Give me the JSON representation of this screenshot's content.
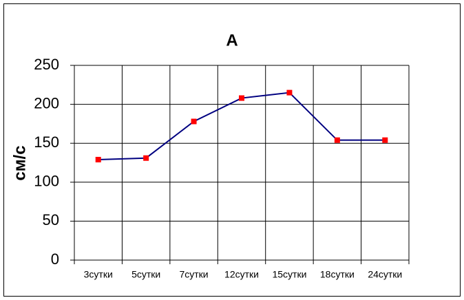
{
  "chart_data": {
    "type": "line",
    "title": "A",
    "y_label": "см/с",
    "categories": [
      "3сутки",
      "5сутки",
      "7сутки",
      "12сутки",
      "15сутки",
      "18сутки",
      "24сутки"
    ],
    "series": [
      {
        "color": "#000080",
        "marker_color": "#ff0000",
        "values": [
          129,
          131,
          178,
          208,
          215,
          154,
          154
        ]
      }
    ],
    "ylim": [
      0,
      250
    ],
    "yticks": [
      0,
      50,
      100,
      150,
      200,
      250
    ],
    "grid": true
  }
}
